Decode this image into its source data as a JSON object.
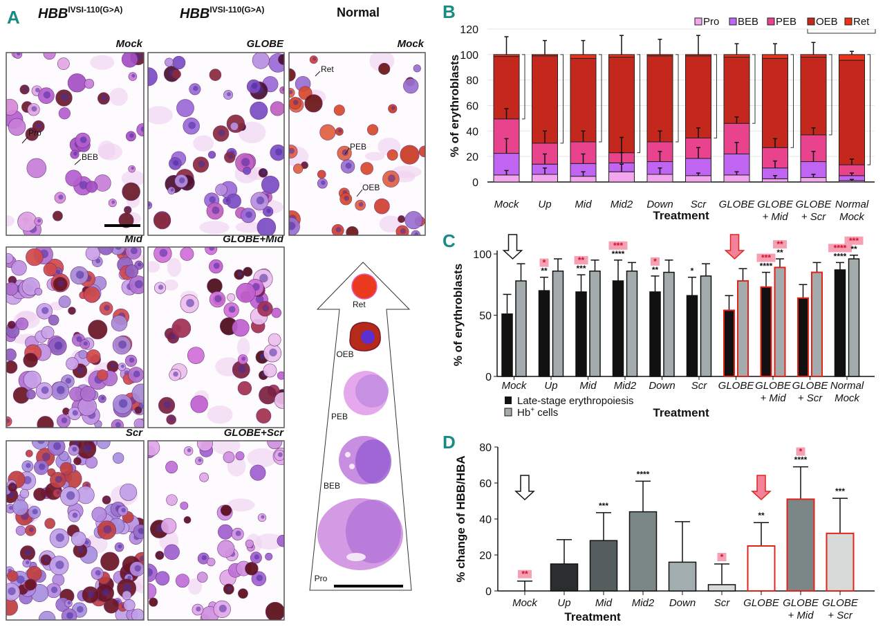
{
  "panel_letters": {
    "a": "A",
    "b": "B",
    "c": "C",
    "d": "D"
  },
  "panel_a": {
    "col_headers": [
      {
        "gene": "HBB",
        "sup": "IVSI-110(G>A)"
      },
      {
        "gene": "HBB",
        "sup": "IVSI-110(G>A)"
      },
      {
        "text": "Normal"
      }
    ],
    "subtitles": [
      "Mock",
      "GLOBE",
      "Mock",
      "Mid",
      "GLOBE+Mid",
      "Scr",
      "GLOBE+Scr"
    ],
    "cell_labels": {
      "pro": "Pro",
      "beb": "BEB",
      "ret": "Ret",
      "peb": "PEB",
      "oeb": "OEB"
    },
    "stages": [
      "Ret",
      "OEB",
      "PEB",
      "BEB",
      "Pro"
    ]
  },
  "chart_data": [
    {
      "type": "bar",
      "stacked": true,
      "panel": "B",
      "title": "",
      "xlabel": "Treatment",
      "ylabel": "% of erythroblasts",
      "ylim": [
        0,
        120
      ],
      "y_ticks": [
        0,
        20,
        40,
        60,
        80,
        100,
        120
      ],
      "grid": true,
      "legend_position": "top-right",
      "legend": [
        "Pro",
        "BEB",
        "PEB",
        "OEB",
        "Ret"
      ],
      "colors": [
        "#f3a6ee",
        "#c065f2",
        "#e8438c",
        "#c4281c",
        "#ea3318"
      ],
      "categories": [
        [
          "Mock"
        ],
        [
          "Up"
        ],
        [
          "Mid"
        ],
        [
          "Mid2"
        ],
        [
          "Down"
        ],
        [
          "Scr"
        ],
        [
          "GLOBE"
        ],
        [
          "GLOBE",
          "+ Mid"
        ],
        [
          "GLOBE",
          "+ Scr"
        ],
        [
          "Normal",
          "Mock"
        ]
      ],
      "series": [
        {
          "name": "Pro",
          "values": [
            5.5,
            6,
            4.5,
            8,
            6,
            5,
            5.5,
            2.5,
            3.5,
            1
          ]
        },
        {
          "name": "BEB",
          "values": [
            17,
            8,
            10,
            7,
            10,
            13.5,
            16.5,
            8.5,
            12.5,
            4
          ]
        },
        {
          "name": "PEB",
          "values": [
            27,
            16.5,
            17,
            8,
            15.5,
            16,
            24,
            16,
            21,
            8.5
          ]
        },
        {
          "name": "OEB",
          "values": [
            49,
            68.5,
            65.5,
            75,
            67.5,
            64.5,
            52,
            70,
            61,
            82
          ]
        },
        {
          "name": "Ret",
          "values": [
            1.5,
            1,
            3,
            2,
            1,
            1,
            2,
            3,
            2,
            4.5
          ]
        }
      ],
      "error_bar_tops": {
        "Pro": [
          9,
          11,
          8,
          14,
          11,
          7,
          8,
          5,
          6,
          2
        ],
        "BEB": [
          34,
          22,
          22,
          23,
          24,
          27,
          31,
          16.5,
          24,
          7
        ],
        "PEB": [
          57.5,
          40,
          40,
          35,
          40,
          42.5,
          51,
          34,
          42.5,
          18
        ],
        "Total": [
          114,
          111,
          111,
          115,
          112,
          115,
          108.5,
          108.5,
          109.5,
          102.5
        ]
      },
      "bracket_note": "OEB+Ret bracket"
    },
    {
      "type": "bar",
      "panel": "C",
      "xlabel": "Treatment",
      "ylabel": "% of erythroblasts",
      "ylim": [
        0,
        100
      ],
      "y_ticks": [
        0,
        50,
        100
      ],
      "legend_position": "bottom-left",
      "categories": [
        [
          "Mock"
        ],
        [
          "Up"
        ],
        [
          "Mid"
        ],
        [
          "Mid2"
        ],
        [
          "Down"
        ],
        [
          "Scr"
        ],
        [
          "GLOBE"
        ],
        [
          "GLOBE",
          "+ Mid"
        ],
        [
          "GLOBE",
          "+ Scr"
        ],
        [
          "Normal",
          "Mock"
        ]
      ],
      "series": [
        {
          "name": "Late-stage erythropoiesis",
          "color": "#111111",
          "values": [
            51,
            70,
            69,
            78,
            69,
            66,
            54,
            73,
            64,
            87
          ],
          "error_tops": [
            67,
            81,
            83,
            95,
            82,
            81,
            66,
            85,
            75,
            93
          ],
          "stars": [
            "",
            "**",
            "***",
            "****",
            "**",
            "*",
            "",
            "****",
            "",
            "****"
          ],
          "pink_stars": [
            "",
            "*",
            "**",
            "***",
            "*",
            "",
            "",
            "***",
            "",
            "****"
          ]
        },
        {
          "name": "Hb",
          "name_sup": "+",
          "name_suffix": " cells",
          "color": "#a3abad",
          "values": [
            78,
            86,
            86,
            86,
            85,
            82,
            78,
            89,
            85,
            96
          ],
          "error_tops": [
            92,
            96,
            95,
            93,
            95,
            92,
            88,
            96,
            93,
            99
          ],
          "stars": [
            "",
            "",
            "",
            "",
            "",
            "",
            "",
            "**",
            "",
            "**"
          ],
          "pink_stars": [
            "",
            "",
            "",
            "",
            "",
            "",
            "",
            "**",
            "",
            "***"
          ]
        }
      ],
      "highlight_color": "#e0231b",
      "highlighted_categories": [
        6,
        7,
        8
      ],
      "arrows": [
        {
          "category": 0,
          "style": "open"
        },
        {
          "category": 6,
          "style": "pink"
        }
      ]
    },
    {
      "type": "bar",
      "panel": "D",
      "xlabel": "Treatment",
      "ylabel": "% change of HBB/HBA",
      "ylim": [
        0,
        80
      ],
      "y_ticks": [
        0,
        20,
        40,
        60,
        80
      ],
      "categories": [
        [
          "Mock"
        ],
        [
          "Up"
        ],
        [
          "Mid"
        ],
        [
          "Mid2"
        ],
        [
          "Down"
        ],
        [
          "Scr"
        ],
        [
          "GLOBE"
        ],
        [
          "GLOBE",
          "+ Mid"
        ],
        [
          "GLOBE",
          "+ Scr"
        ]
      ],
      "values": [
        0,
        15,
        28,
        44,
        16,
        3.5,
        25,
        51,
        32
      ],
      "error_tops": [
        5.5,
        28.5,
        43.5,
        61,
        38.5,
        15,
        38,
        69,
        51.5
      ],
      "colors": [
        "#ffffff",
        "#2a2e2f",
        "#555e5e",
        "#7b8786",
        "#a2adb0",
        "#d6dad9",
        "#ffffff",
        "#7b8786",
        "#d6dad9"
      ],
      "stars": [
        "",
        "",
        "***",
        "****",
        "",
        "",
        "**",
        "****",
        "***"
      ],
      "pink_stars": [
        "**",
        "",
        "",
        "",
        "",
        "*",
        "",
        "*",
        ""
      ],
      "highlight_color": "#e0231b",
      "highlighted_categories": [
        6,
        7,
        8
      ],
      "arrows": [
        {
          "category": 0,
          "style": "open"
        },
        {
          "category": 6,
          "style": "pink"
        }
      ]
    }
  ]
}
